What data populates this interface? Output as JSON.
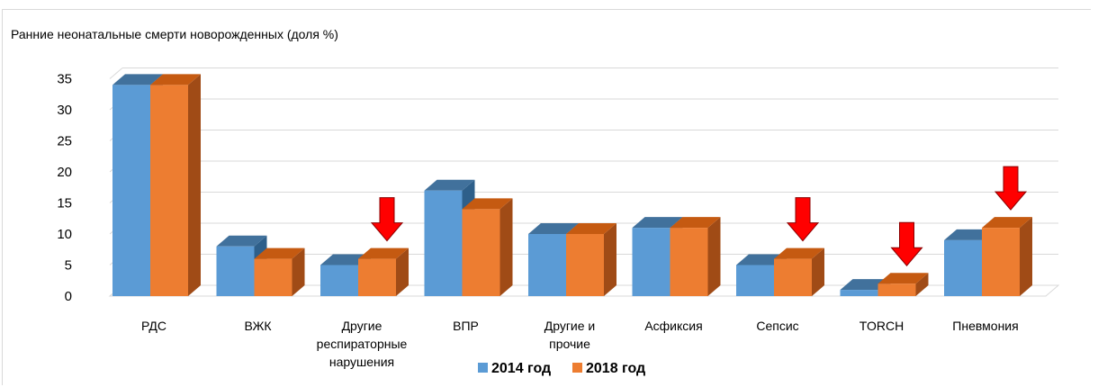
{
  "chart_data": {
    "type": "bar",
    "title": "Ранние неонатальные смерти новорожденных (доля %)",
    "categories": [
      [
        "РДС"
      ],
      [
        "ВЖК"
      ],
      [
        "Другие",
        "респираторные",
        "нарушения"
      ],
      [
        "ВПР"
      ],
      [
        "Другие и",
        "прочие"
      ],
      [
        "Асфиксия"
      ],
      [
        "Сепсис"
      ],
      [
        "TORCH"
      ],
      [
        "Пневмония"
      ]
    ],
    "series": [
      {
        "name": "2014 год",
        "values": [
          34,
          8,
          5,
          17,
          10,
          11,
          5,
          1,
          9
        ],
        "color": "#5b9bd5",
        "top_color": "#41719c",
        "side_color": "#2e5f8a"
      },
      {
        "name": "2018 год",
        "values": [
          34,
          6,
          6,
          14,
          10,
          11,
          6,
          2,
          11
        ],
        "color": "#ed7d31",
        "top_color": "#c55a11",
        "side_color": "#a04b16"
      }
    ],
    "ylim": [
      0,
      35
    ],
    "yticks": [
      0,
      5,
      10,
      15,
      20,
      25,
      30,
      35
    ],
    "grid": true,
    "legend": "bottom",
    "annotations": [
      {
        "type": "down-arrow",
        "category_index": 2,
        "color": "#ff0000"
      },
      {
        "type": "down-arrow",
        "category_index": 6,
        "color": "#ff0000"
      },
      {
        "type": "down-arrow",
        "category_index": 7,
        "color": "#ff0000"
      },
      {
        "type": "down-arrow",
        "category_index": 8,
        "color": "#ff0000"
      }
    ]
  }
}
